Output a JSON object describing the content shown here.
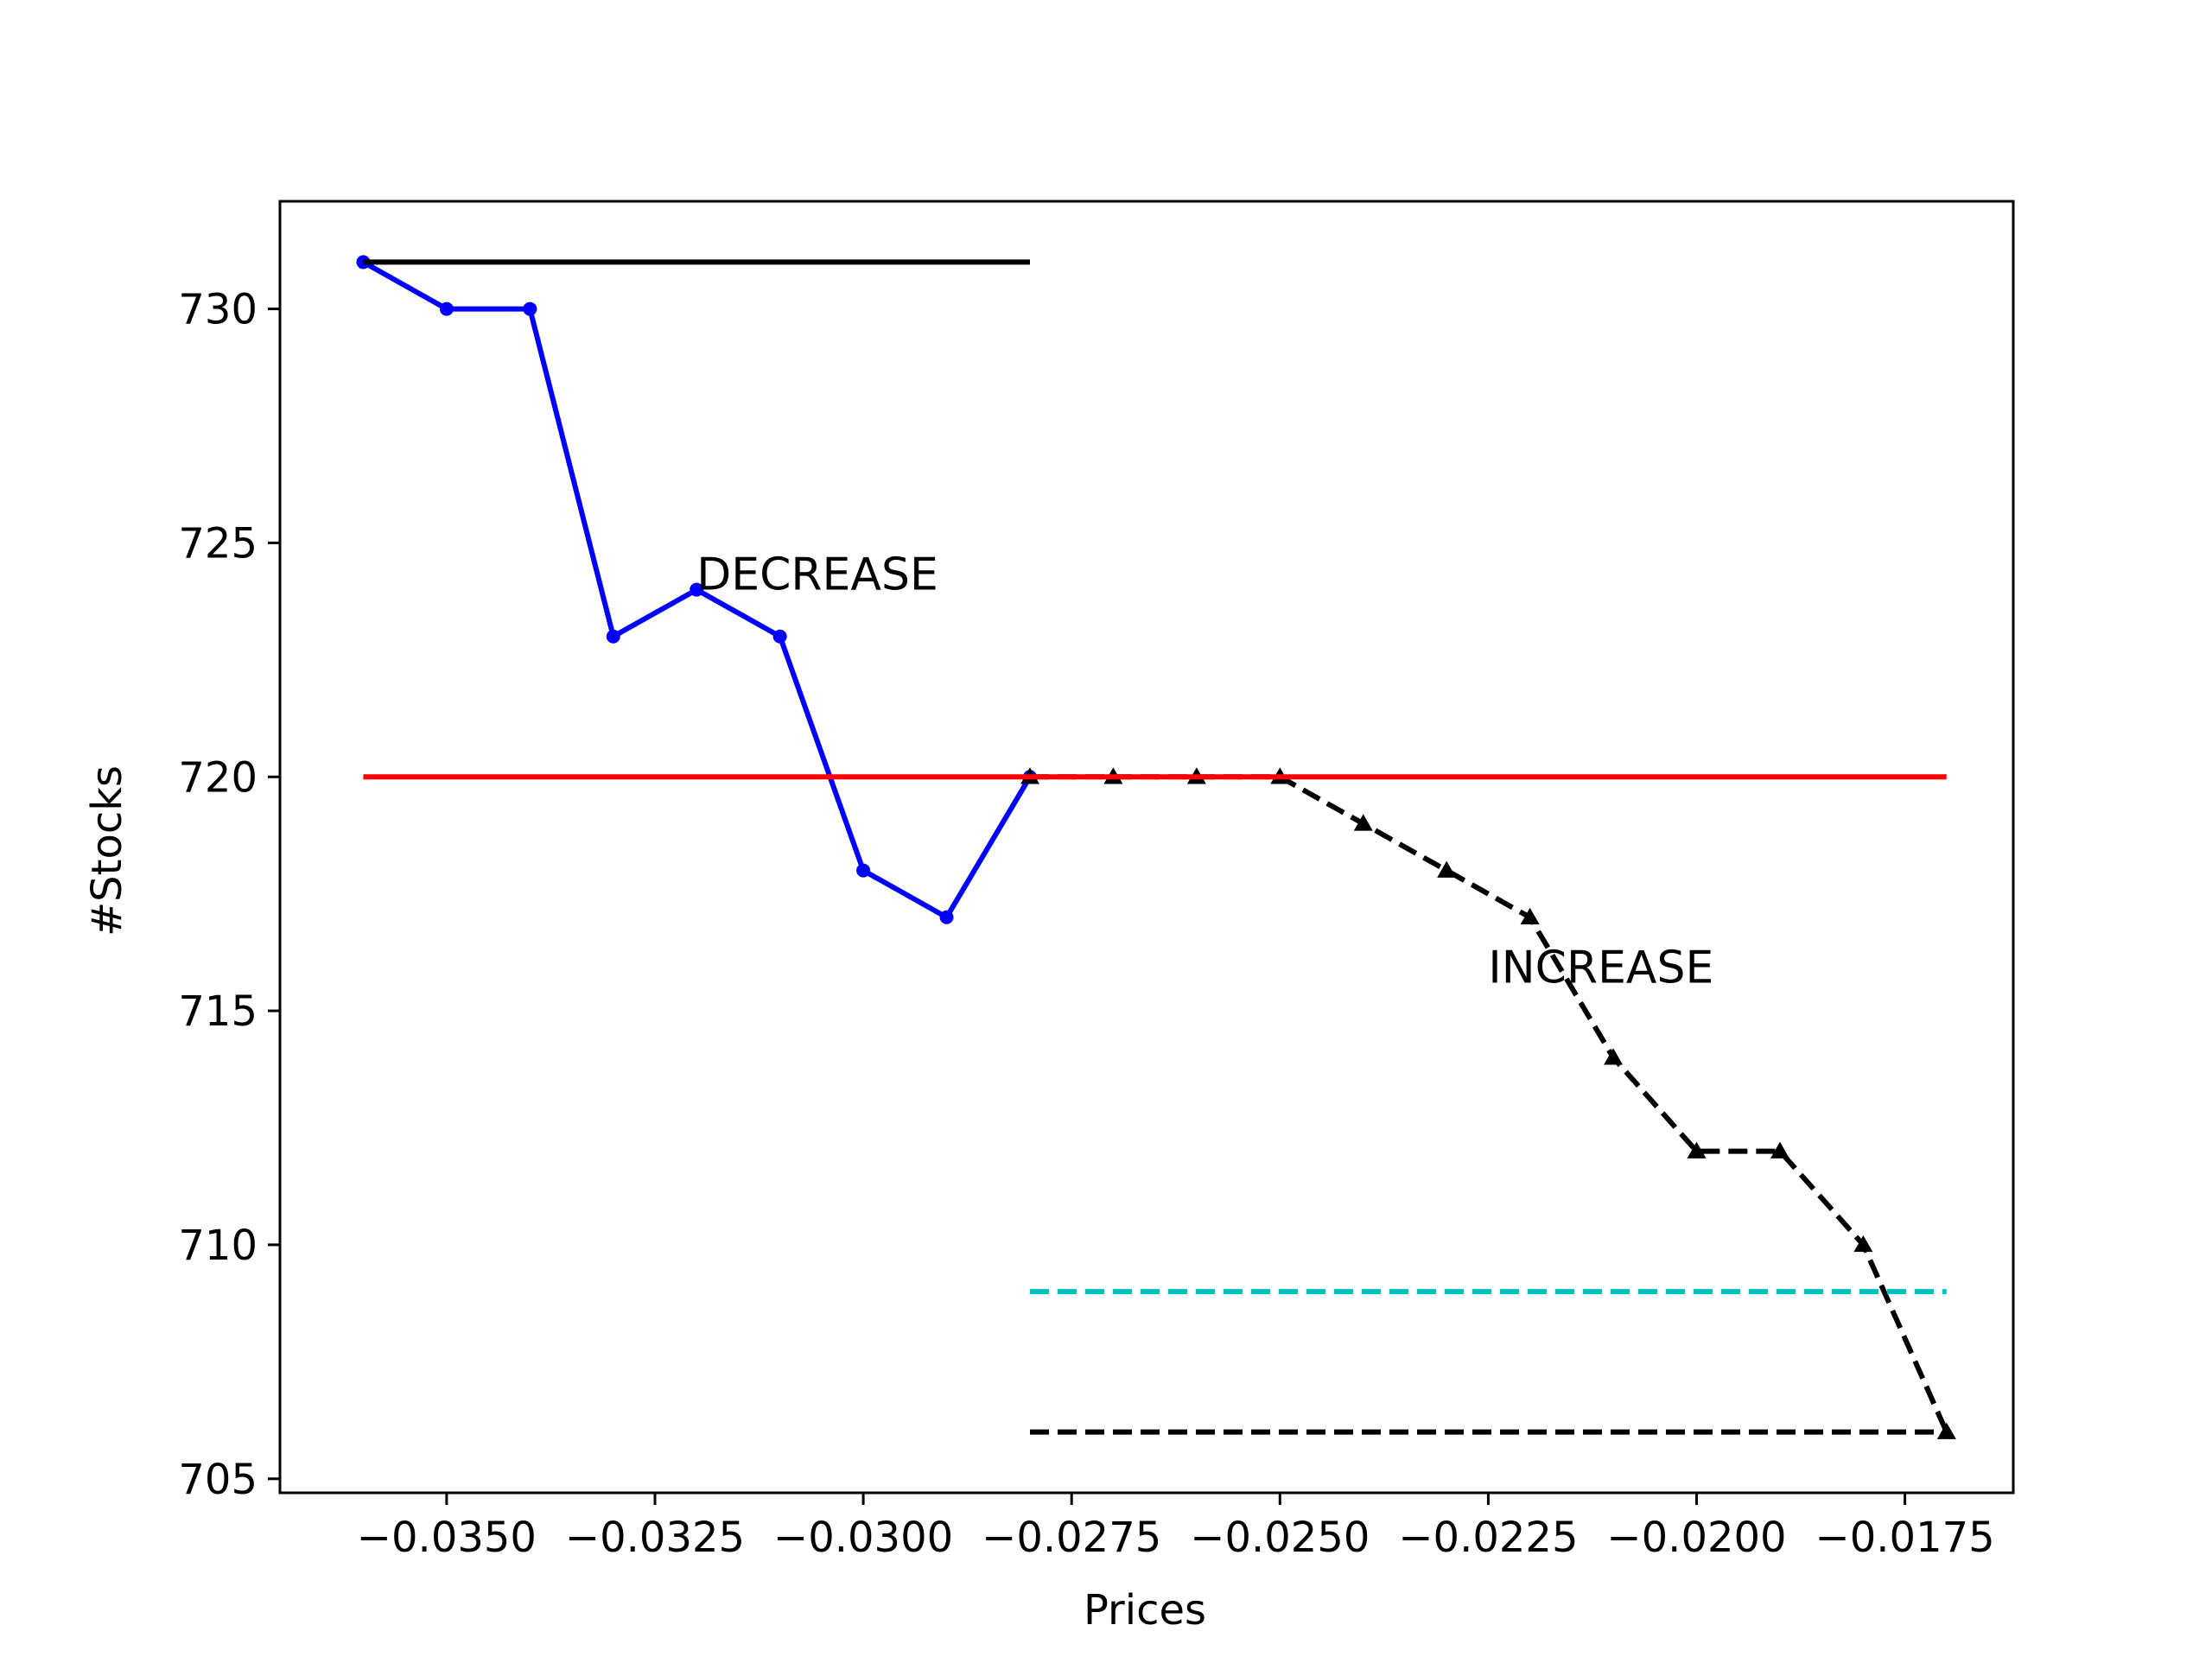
{
  "chart_data": {
    "type": "line",
    "title": "",
    "xlabel": "Prices",
    "ylabel": "#Stocks",
    "xlim": [
      -0.037,
      -0.0162
    ],
    "ylim": [
      704.7,
      732.3
    ],
    "xticks": [
      -0.035,
      -0.0325,
      -0.03,
      -0.0275,
      -0.025,
      -0.0225,
      -0.02,
      -0.0175
    ],
    "xtick_labels": [
      "−0.0350",
      "−0.0325",
      "−0.0300",
      "−0.0275",
      "−0.0250",
      "−0.0225",
      "−0.0200",
      "−0.0175"
    ],
    "yticks": [
      705,
      710,
      715,
      720,
      725,
      730
    ],
    "ytick_labels": [
      "705",
      "710",
      "715",
      "720",
      "725",
      "730"
    ],
    "grid": false,
    "legend": null,
    "series": [
      {
        "color": "#0000ff",
        "linestyle": "solid",
        "marker": "dot",
        "x": [
          -0.036,
          -0.035,
          -0.034,
          -0.033,
          -0.032,
          -0.031,
          -0.03,
          -0.029,
          -0.028
        ],
        "y": [
          731,
          730,
          730,
          723,
          724,
          723,
          718,
          717,
          720
        ]
      },
      {
        "color": "#000000",
        "linestyle": "dashed",
        "marker": "triangle",
        "x": [
          -0.028,
          -0.027,
          -0.026,
          -0.025,
          -0.024,
          -0.023,
          -0.022,
          -0.021,
          -0.02,
          -0.019,
          -0.018,
          -0.017
        ],
        "y": [
          720,
          720,
          720,
          720,
          719,
          718,
          717,
          714,
          712,
          712,
          710,
          706
        ]
      },
      {
        "color": "#000000",
        "linestyle": "solid",
        "marker": "none",
        "x": [
          -0.036,
          -0.028
        ],
        "y": [
          731,
          731
        ]
      },
      {
        "color": "#ff0000",
        "linestyle": "solid",
        "marker": "none",
        "x": [
          -0.036,
          -0.017
        ],
        "y": [
          720,
          720
        ]
      },
      {
        "color": "#00bfbf",
        "linestyle": "dashed",
        "marker": "none",
        "x": [
          -0.028,
          -0.017
        ],
        "y": [
          709,
          709
        ]
      },
      {
        "color": "#000000",
        "linestyle": "dashed",
        "marker": "none",
        "x": [
          -0.028,
          -0.017
        ],
        "y": [
          706,
          706
        ]
      }
    ],
    "annotations": [
      {
        "text": "DECREASE",
        "x": -0.032,
        "y": 724
      },
      {
        "text": "INCREASE",
        "x": -0.0225,
        "y": 715.6
      }
    ]
  }
}
